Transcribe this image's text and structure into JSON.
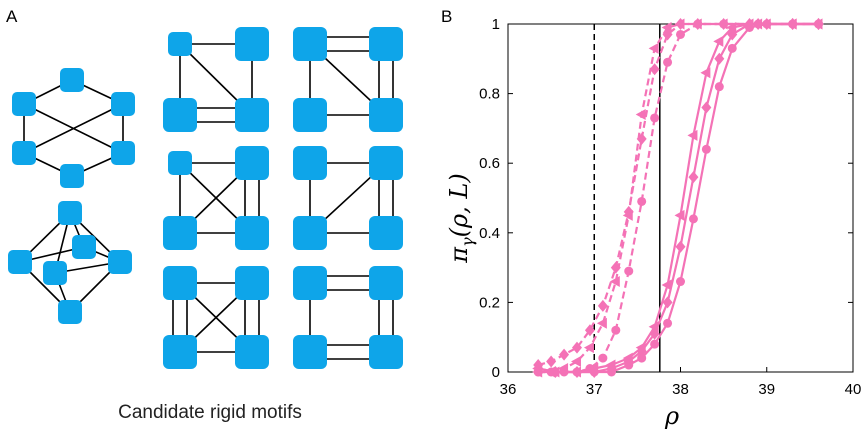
{
  "panel_a": {
    "letter": "A",
    "caption": "Candidate rigid motifs",
    "node_color": "#0ea5e9"
  },
  "panel_b": {
    "letter": "B",
    "series_color": "#f472b6"
  },
  "chart_data": {
    "type": "line",
    "xlabel": "ρ",
    "ylabel": "π_γ(ρ, L)",
    "xlim": [
      36,
      40
    ],
    "ylim": [
      0,
      1
    ],
    "xticks": [
      "36",
      "37",
      "38",
      "39",
      "40"
    ],
    "yticks": [
      "0",
      "0.2",
      "0.4",
      "0.6",
      "0.8",
      "1"
    ],
    "grid": false,
    "vlines": [
      {
        "x": 37.0,
        "style": "dashed"
      },
      {
        "x": 37.76,
        "style": "solid"
      }
    ],
    "series": [
      {
        "style": "dashed",
        "marker": "diamond",
        "x": [
          36.35,
          36.5,
          36.65,
          36.8,
          36.95,
          37.1,
          37.25,
          37.4,
          37.55,
          37.7,
          37.85,
          38.0,
          38.2,
          38.5,
          38.9,
          39.3,
          39.6
        ],
        "y": [
          0.02,
          0.03,
          0.05,
          0.07,
          0.12,
          0.19,
          0.3,
          0.46,
          0.67,
          0.87,
          0.97,
          1.0,
          1.0,
          1.0,
          1.0,
          1.0,
          1.0
        ]
      },
      {
        "style": "dashed",
        "marker": "triangle-left",
        "x": [
          36.35,
          36.5,
          36.65,
          36.8,
          36.95,
          37.1,
          37.25,
          37.4,
          37.55,
          37.7,
          37.85,
          38.0,
          38.2,
          38.5,
          38.9,
          39.3,
          39.6
        ],
        "y": [
          0.0,
          0.0,
          0.01,
          0.03,
          0.07,
          0.14,
          0.26,
          0.45,
          0.74,
          0.93,
          0.99,
          1.0,
          1.0,
          1.0,
          1.0,
          1.0,
          1.0
        ]
      },
      {
        "style": "dashed",
        "marker": "circle",
        "x": [
          36.35,
          36.5,
          36.65,
          36.8,
          36.95,
          37.1,
          37.25,
          37.4,
          37.55,
          37.7,
          37.85,
          38.0,
          38.2,
          38.5,
          38.9,
          39.3,
          39.6
        ],
        "y": [
          0.0,
          0.0,
          0.0,
          0.0,
          0.01,
          0.04,
          0.12,
          0.29,
          0.49,
          0.73,
          0.89,
          0.97,
          1.0,
          1.0,
          1.0,
          1.0,
          1.0
        ]
      },
      {
        "style": "solid",
        "marker": "triangle-left",
        "x": [
          36.35,
          36.55,
          36.8,
          37.0,
          37.2,
          37.4,
          37.55,
          37.7,
          37.85,
          38.0,
          38.15,
          38.3,
          38.45,
          38.6,
          38.8,
          39.0,
          39.3,
          39.6
        ],
        "y": [
          0.01,
          0.0,
          0.0,
          0.01,
          0.02,
          0.04,
          0.07,
          0.13,
          0.25,
          0.45,
          0.68,
          0.86,
          0.95,
          0.99,
          1.0,
          1.0,
          1.0,
          1.0
        ]
      },
      {
        "style": "solid",
        "marker": "diamond",
        "x": [
          36.35,
          36.55,
          36.8,
          37.0,
          37.2,
          37.4,
          37.55,
          37.7,
          37.85,
          38.0,
          38.15,
          38.3,
          38.45,
          38.6,
          38.8,
          39.0,
          39.3,
          39.6
        ],
        "y": [
          0.01,
          0.0,
          0.0,
          0.0,
          0.01,
          0.03,
          0.06,
          0.11,
          0.2,
          0.36,
          0.56,
          0.76,
          0.9,
          0.97,
          1.0,
          1.0,
          1.0,
          1.0
        ]
      },
      {
        "style": "solid",
        "marker": "circle",
        "x": [
          36.35,
          36.55,
          36.8,
          37.0,
          37.2,
          37.4,
          37.55,
          37.7,
          37.85,
          38.0,
          38.15,
          38.3,
          38.45,
          38.6,
          38.8,
          39.0,
          39.3,
          39.6
        ],
        "y": [
          0.0,
          0.0,
          0.0,
          0.0,
          0.0,
          0.02,
          0.04,
          0.08,
          0.14,
          0.26,
          0.44,
          0.64,
          0.82,
          0.93,
          0.99,
          1.0,
          1.0,
          1.0
        ]
      }
    ]
  }
}
